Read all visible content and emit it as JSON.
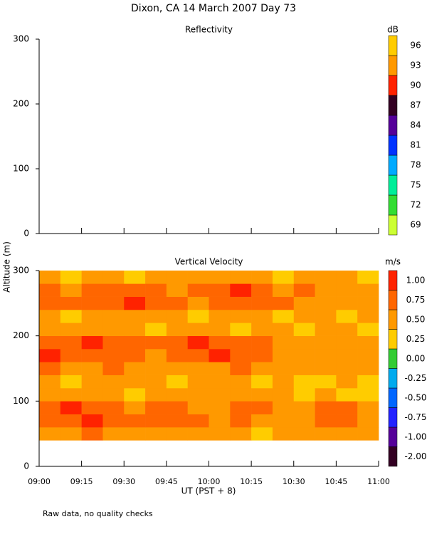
{
  "title": "Dixon, CA 14 March 2007  Day  73",
  "ylabel": "Altitude (m)",
  "xlabel": "UT  (PST + 8)",
  "note": "Raw data, no quality checks",
  "chart_data": [
    {
      "type": "heatmap",
      "title": "Reflectivity",
      "xlim": [
        9,
        11
      ],
      "xticks": [
        9,
        9.25,
        9.5,
        9.75,
        10,
        10.25,
        10.5,
        10.75,
        11
      ],
      "ylim": [
        0,
        300
      ],
      "yticks": [
        0,
        100,
        200,
        300
      ],
      "colorbar": {
        "unit": "dB",
        "levels": [
          69,
          72,
          75,
          78,
          81,
          84,
          87,
          90,
          93,
          96
        ],
        "colors": [
          "#ccff33",
          "#33dd33",
          "#00ee99",
          "#00aaff",
          "#0033ff",
          "#550099",
          "#330022",
          "#ff2200",
          "#ff9900",
          "#ffcc00"
        ]
      }
    },
    {
      "type": "heatmap",
      "title": "Vertical Velocity",
      "xlim": [
        9,
        11
      ],
      "xticks": [
        {
          "value": 9,
          "label": "09:00"
        },
        {
          "value": 9.25,
          "label": "09:15"
        },
        {
          "value": 9.5,
          "label": "09:30"
        },
        {
          "value": 9.75,
          "label": "09:45"
        },
        {
          "value": 10,
          "label": "10:00"
        },
        {
          "value": 10.25,
          "label": "10:15"
        },
        {
          "value": 10.5,
          "label": "10:30"
        },
        {
          "value": 10.75,
          "label": "10:45"
        },
        {
          "value": 11,
          "label": "11:00"
        }
      ],
      "ylim": [
        0,
        300
      ],
      "yticks": [
        0,
        100,
        200,
        300
      ],
      "colorbar": {
        "unit": "m/s",
        "levels": [
          {
            "value": -2,
            "label": "-2.00"
          },
          {
            "value": -1,
            "label": "-1.00"
          },
          {
            "value": -0.75,
            "label": "-0.75"
          },
          {
            "value": -0.5,
            "label": "-0.50"
          },
          {
            "value": -0.25,
            "label": "-0.25"
          },
          {
            "value": 0,
            "label": "0.00"
          },
          {
            "value": 0.25,
            "label": "0.25"
          },
          {
            "value": 0.5,
            "label": "0.50"
          },
          {
            "value": 0.75,
            "label": "0.75"
          },
          {
            "value": 1,
            "label": "1.00"
          }
        ],
        "colors": [
          "#330022",
          "#550099",
          "#2222ff",
          "#0066ff",
          "#00aaee",
          "#33cc33",
          "#ffcc00",
          "#ff9900",
          "#ff6600",
          "#ff2200"
        ]
      },
      "x": [
        9.0625,
        9.1875,
        9.3125,
        9.4375,
        9.5625,
        9.6875,
        9.8125,
        9.9375,
        10.0625,
        10.1875,
        10.3125,
        10.4375,
        10.5625,
        10.6875,
        10.8125,
        10.9375
      ],
      "y": [
        50,
        70,
        90,
        110,
        130,
        150,
        170,
        190,
        210,
        230,
        250,
        270,
        290
      ],
      "z": [
        [
          0.6,
          0.6,
          0.8,
          0.6,
          0.6,
          0.6,
          0.6,
          0.6,
          0.6,
          0.6,
          0.3,
          0.6,
          0.6,
          0.6,
          0.6,
          0.6
        ],
        [
          0.8,
          0.8,
          1.0,
          0.8,
          0.8,
          0.8,
          0.8,
          0.8,
          0.6,
          0.8,
          0.6,
          0.6,
          0.6,
          0.8,
          0.8,
          0.6
        ],
        [
          0.8,
          1.0,
          0.8,
          0.8,
          0.6,
          0.8,
          0.8,
          0.6,
          0.6,
          0.8,
          0.8,
          0.6,
          0.6,
          0.8,
          0.8,
          0.6
        ],
        [
          0.6,
          0.6,
          0.6,
          0.6,
          0.3,
          0.6,
          0.6,
          0.6,
          0.6,
          0.6,
          0.6,
          0.6,
          0.3,
          0.6,
          0.3,
          0.3
        ],
        [
          0.6,
          0.3,
          0.6,
          0.6,
          0.6,
          0.6,
          0.3,
          0.6,
          0.6,
          0.6,
          0.3,
          0.6,
          0.3,
          0.3,
          0.6,
          0.3
        ],
        [
          0.8,
          0.6,
          0.6,
          0.8,
          0.6,
          0.6,
          0.6,
          0.6,
          0.6,
          0.8,
          0.6,
          0.6,
          0.6,
          0.6,
          0.6,
          0.6
        ],
        [
          1.0,
          0.8,
          0.8,
          0.8,
          0.8,
          0.6,
          0.8,
          0.8,
          1.0,
          0.8,
          0.8,
          0.6,
          0.6,
          0.6,
          0.6,
          0.6
        ],
        [
          0.8,
          0.8,
          1.0,
          0.8,
          0.8,
          0.8,
          0.8,
          1.0,
          0.8,
          0.8,
          0.8,
          0.6,
          0.6,
          0.6,
          0.6,
          0.6
        ],
        [
          0.6,
          0.6,
          0.6,
          0.6,
          0.6,
          0.3,
          0.6,
          0.6,
          0.6,
          0.3,
          0.6,
          0.6,
          0.3,
          0.6,
          0.6,
          0.3
        ],
        [
          0.6,
          0.3,
          0.6,
          0.6,
          0.6,
          0.6,
          0.6,
          0.3,
          0.6,
          0.6,
          0.6,
          0.3,
          0.6,
          0.6,
          0.3,
          0.6
        ],
        [
          0.8,
          0.8,
          0.8,
          0.8,
          1.0,
          0.8,
          0.8,
          0.6,
          0.8,
          0.8,
          0.8,
          0.8,
          0.6,
          0.6,
          0.6,
          0.6
        ],
        [
          0.8,
          0.6,
          0.8,
          0.8,
          0.8,
          0.8,
          0.6,
          0.8,
          0.8,
          1.0,
          0.8,
          0.6,
          0.8,
          0.6,
          0.6,
          0.6
        ],
        [
          0.6,
          0.3,
          0.6,
          0.6,
          0.3,
          0.6,
          0.6,
          0.6,
          0.6,
          0.6,
          0.6,
          0.3,
          0.6,
          0.6,
          0.6,
          0.3
        ]
      ]
    }
  ]
}
